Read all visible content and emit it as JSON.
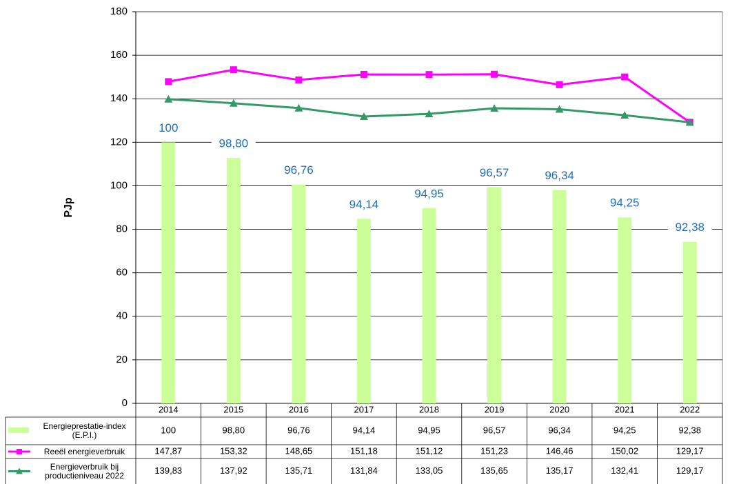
{
  "chart_data": {
    "type": "bar-line",
    "y_label": "PJp",
    "categories": [
      "2014",
      "2015",
      "2016",
      "2017",
      "2018",
      "2019",
      "2020",
      "2021",
      "2022"
    ],
    "ylim": [
      0,
      180
    ],
    "yticks": [
      0,
      20,
      40,
      60,
      80,
      100,
      120,
      140,
      160,
      180
    ],
    "grid": true,
    "y2lim": [
      80,
      110
    ],
    "series": [
      {
        "name": "Energieprestatie-index (E.P.I.)",
        "type": "bar",
        "axis": "y2",
        "color": "#ccff99",
        "values": [
          100,
          98.8,
          96.76,
          94.14,
          94.95,
          96.57,
          96.34,
          94.25,
          92.38
        ],
        "value_labels": [
          "100",
          "98,80",
          "96,76",
          "94,14",
          "94,95",
          "96,57",
          "96,34",
          "94,25",
          "92,38"
        ]
      },
      {
        "name": "Reeël energieverbruik",
        "type": "line",
        "color": "#ff00ff",
        "marker": "square",
        "values": [
          147.87,
          153.32,
          148.65,
          151.18,
          151.12,
          151.23,
          146.46,
          150.02,
          129.17
        ],
        "value_labels": [
          "147,87",
          "153,32",
          "148,65",
          "151,18",
          "151,12",
          "151,23",
          "146,46",
          "150,02",
          "129,17"
        ]
      },
      {
        "name": "Energieverbruik bij productieniveau 2022",
        "type": "line",
        "color": "#339966",
        "marker": "triangle",
        "values": [
          139.83,
          137.92,
          135.71,
          131.84,
          133.05,
          135.65,
          135.17,
          132.41,
          129.17
        ],
        "value_labels": [
          "139,83",
          "137,92",
          "135,71",
          "131,84",
          "133,05",
          "135,65",
          "135,17",
          "132,41",
          "129,17"
        ]
      }
    ]
  }
}
